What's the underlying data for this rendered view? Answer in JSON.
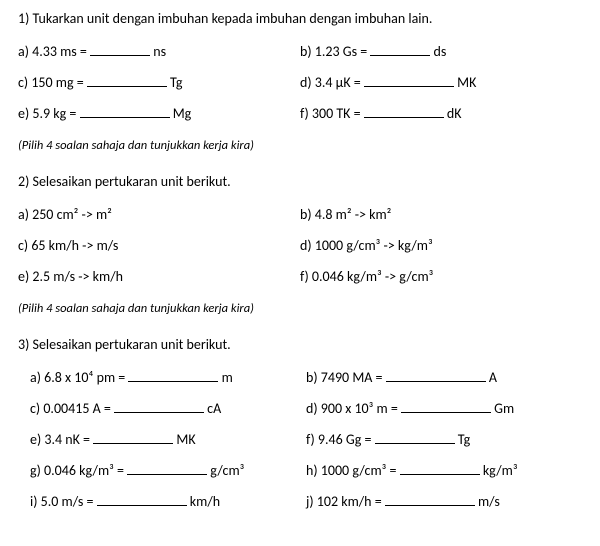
{
  "q1": {
    "heading": "1) Tukarkan unit dengan imbuhan kepada imbuhan dengan imbuhan lain.",
    "a_pre": "a) 4.33 ms = ",
    "a_unit": " ns",
    "b_pre": "b) 1.23 Gs = ",
    "b_unit": " ds",
    "c_pre": "c) 150 mg = ",
    "c_unit": " Tg",
    "d_pre": "d) 3.4 µK = ",
    "d_unit": " MK",
    "e_pre": "e) 5.9 kg = ",
    "e_unit": " Mg",
    "f_pre": "f) 300 TK = ",
    "f_unit": " dK"
  },
  "instr": "(Pilih 4 soalan sahaja dan tunjukkan kerja kira)",
  "q2": {
    "heading": "2) Selesaikan pertukaran unit berikut.",
    "a": "a) 250 cm² -> m²",
    "b": "b) 4.8 m² -> km²",
    "c": "c) 65 km/h -> m/s",
    "d": "d) 1000 g/cm³ -> kg/m³",
    "e": "e) 2.5 m/s -> km/h",
    "f": "f) 0.046 kg/m³ -> g/cm³"
  },
  "q3": {
    "heading": "3) Selesaikan pertukaran unit berikut.",
    "a_pre": "a)  6.8 x 10⁴ pm = ",
    "a_unit": " m",
    "b_pre": "b) 7490 MA = ",
    "b_unit": " A",
    "c_pre": "c)  0.00415 A = ",
    "c_unit": " cA",
    "d_pre": "d) 900 x 10³ m = ",
    "d_unit": " Gm",
    "e_pre": "e)  3.4 nK = ",
    "e_unit": " MK",
    "f_pre": "f) 9.46 Gg = ",
    "f_unit": " Tg",
    "g_pre": "g)  0.046 kg/m³ = ",
    "g_unit": " g/cm³",
    "h_pre": "h) 1000 g/cm³ = ",
    "h_unit": " kg/m³",
    "i_pre": "i)  5.0 m/s = ",
    "i_unit": " km/h",
    "j_pre": "j) 102 km/h = ",
    "j_unit": " m/s"
  }
}
